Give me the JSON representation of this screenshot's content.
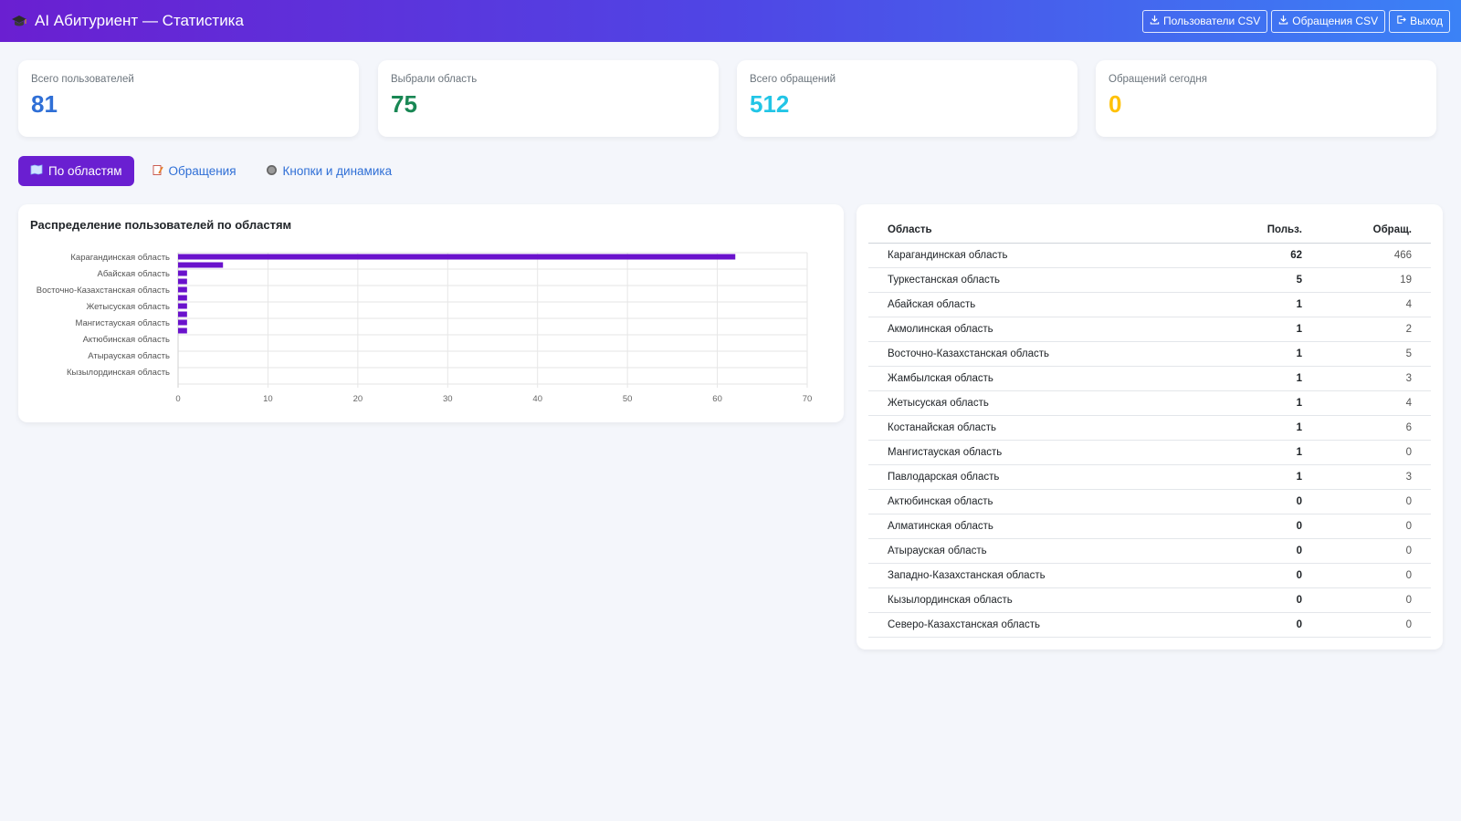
{
  "header": {
    "title": "AI Абитуриент — Статистика",
    "buttons": {
      "users_csv": "Пользователи CSV",
      "appeals_csv": "Обращения CSV",
      "logout": "Выход"
    }
  },
  "stats": [
    {
      "label": "Всего пользователей",
      "value": "81",
      "color": "#2f6fd6"
    },
    {
      "label": "Выбрали область",
      "value": "75",
      "color": "#198754"
    },
    {
      "label": "Всего обращений",
      "value": "512",
      "color": "#22c5e6"
    },
    {
      "label": "Обращений сегодня",
      "value": "0",
      "color": "#ffc107"
    }
  ],
  "tabs": [
    {
      "label": "По областям",
      "icon": "map-icon",
      "active": true
    },
    {
      "label": "Обращения",
      "icon": "memo-icon",
      "active": false
    },
    {
      "label": "Кнопки и динамика",
      "icon": "button-icon",
      "active": false
    }
  ],
  "chart_title": "Распределение пользователей по областям",
  "chart_data": {
    "type": "bar",
    "orientation": "horizontal",
    "title": "Распределение пользователей по областям",
    "categories": [
      "Карагандинская область",
      "Туркестанская область",
      "Абайская область",
      "Акмолинская область",
      "Восточно-Казахстанская область",
      "Жамбылская область",
      "Жетысуская область",
      "Костанайская область",
      "Мангистауская область",
      "Павлодарская область",
      "Актюбинская область",
      "Алматинская область",
      "Атырауская область",
      "Западно-Казахстанская область",
      "Кызылординская область",
      "Северо-Казахстанская область"
    ],
    "tick_labels_shown": [
      "Карагандинская область",
      "Абайская область",
      "Восточно-Казахстанская область",
      "Жетысуская область",
      "Мангистауская область",
      "Актюбинская область",
      "Атырауская область",
      "Кызылординская область"
    ],
    "values": [
      62,
      5,
      1,
      1,
      1,
      1,
      1,
      1,
      1,
      1,
      0,
      0,
      0,
      0,
      0,
      0
    ],
    "xlim": [
      0,
      70
    ],
    "xticks": [
      0,
      10,
      20,
      30,
      40,
      50,
      60,
      70
    ],
    "grid": true,
    "bar_color": "#6a12cc"
  },
  "table": {
    "headers": {
      "region": "Область",
      "users": "Польз.",
      "appeals": "Обращ."
    },
    "rows": [
      {
        "region": "Карагандинская область",
        "users": "62",
        "appeals": "466"
      },
      {
        "region": "Туркестанская область",
        "users": "5",
        "appeals": "19"
      },
      {
        "region": "Абайская область",
        "users": "1",
        "appeals": "4"
      },
      {
        "region": "Акмолинская область",
        "users": "1",
        "appeals": "2"
      },
      {
        "region": "Восточно-Казахстанская область",
        "users": "1",
        "appeals": "5"
      },
      {
        "region": "Жамбылская область",
        "users": "1",
        "appeals": "3"
      },
      {
        "region": "Жетысуская область",
        "users": "1",
        "appeals": "4"
      },
      {
        "region": "Костанайская область",
        "users": "1",
        "appeals": "6"
      },
      {
        "region": "Мангистауская область",
        "users": "1",
        "appeals": "0"
      },
      {
        "region": "Павлодарская область",
        "users": "1",
        "appeals": "3"
      },
      {
        "region": "Актюбинская область",
        "users": "0",
        "appeals": "0"
      },
      {
        "region": "Алматинская область",
        "users": "0",
        "appeals": "0"
      },
      {
        "region": "Атырауская область",
        "users": "0",
        "appeals": "0"
      },
      {
        "region": "Западно-Казахстанская область",
        "users": "0",
        "appeals": "0"
      },
      {
        "region": "Кызылординская область",
        "users": "0",
        "appeals": "0"
      },
      {
        "region": "Северо-Казахстанская область",
        "users": "0",
        "appeals": "0"
      }
    ]
  }
}
